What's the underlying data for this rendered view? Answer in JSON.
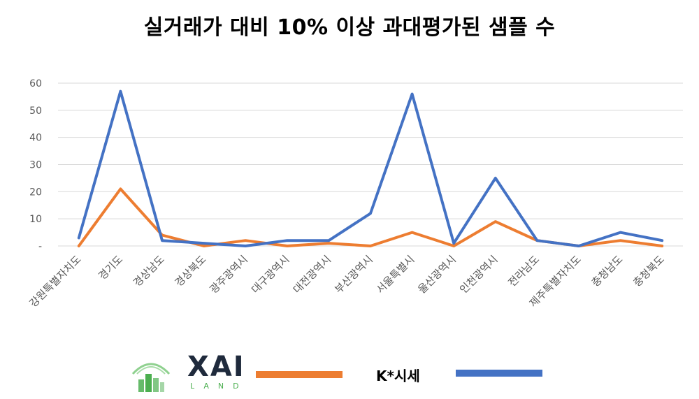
{
  "title": "실거래가 대비 10% 이상 과대평가된 샘플 수",
  "brand": {
    "name": "XAI",
    "sub": "LAND",
    "color": "#4caf50"
  },
  "chart_data": {
    "type": "line",
    "title": "실거래가 대비 10% 이상 과대평가된 샘플 수",
    "categories": [
      "강원특별자치도",
      "경기도",
      "경상남도",
      "경상북도",
      "광주광역시",
      "대구광역시",
      "대전광역시",
      "부산광역시",
      "서울특별시",
      "울산광역시",
      "인천광역시",
      "전라남도",
      "제주특별자치도",
      "충청남도",
      "충청북도"
    ],
    "y_ticks": [
      "-",
      "10",
      "20",
      "30",
      "40",
      "50",
      "60"
    ],
    "ylim": [
      0,
      60
    ],
    "grid": true,
    "legend": "bottom",
    "series": [
      {
        "name": "",
        "color": "#ed7d31",
        "values": [
          0,
          21,
          4,
          0,
          2,
          0,
          1,
          0,
          5,
          0,
          9,
          2,
          0,
          2,
          0
        ]
      },
      {
        "name": "K*시세",
        "color": "#4472c4",
        "values": [
          3,
          57,
          2,
          1,
          0,
          2,
          2,
          12,
          56,
          1,
          25,
          2,
          0,
          5,
          2
        ]
      }
    ]
  }
}
